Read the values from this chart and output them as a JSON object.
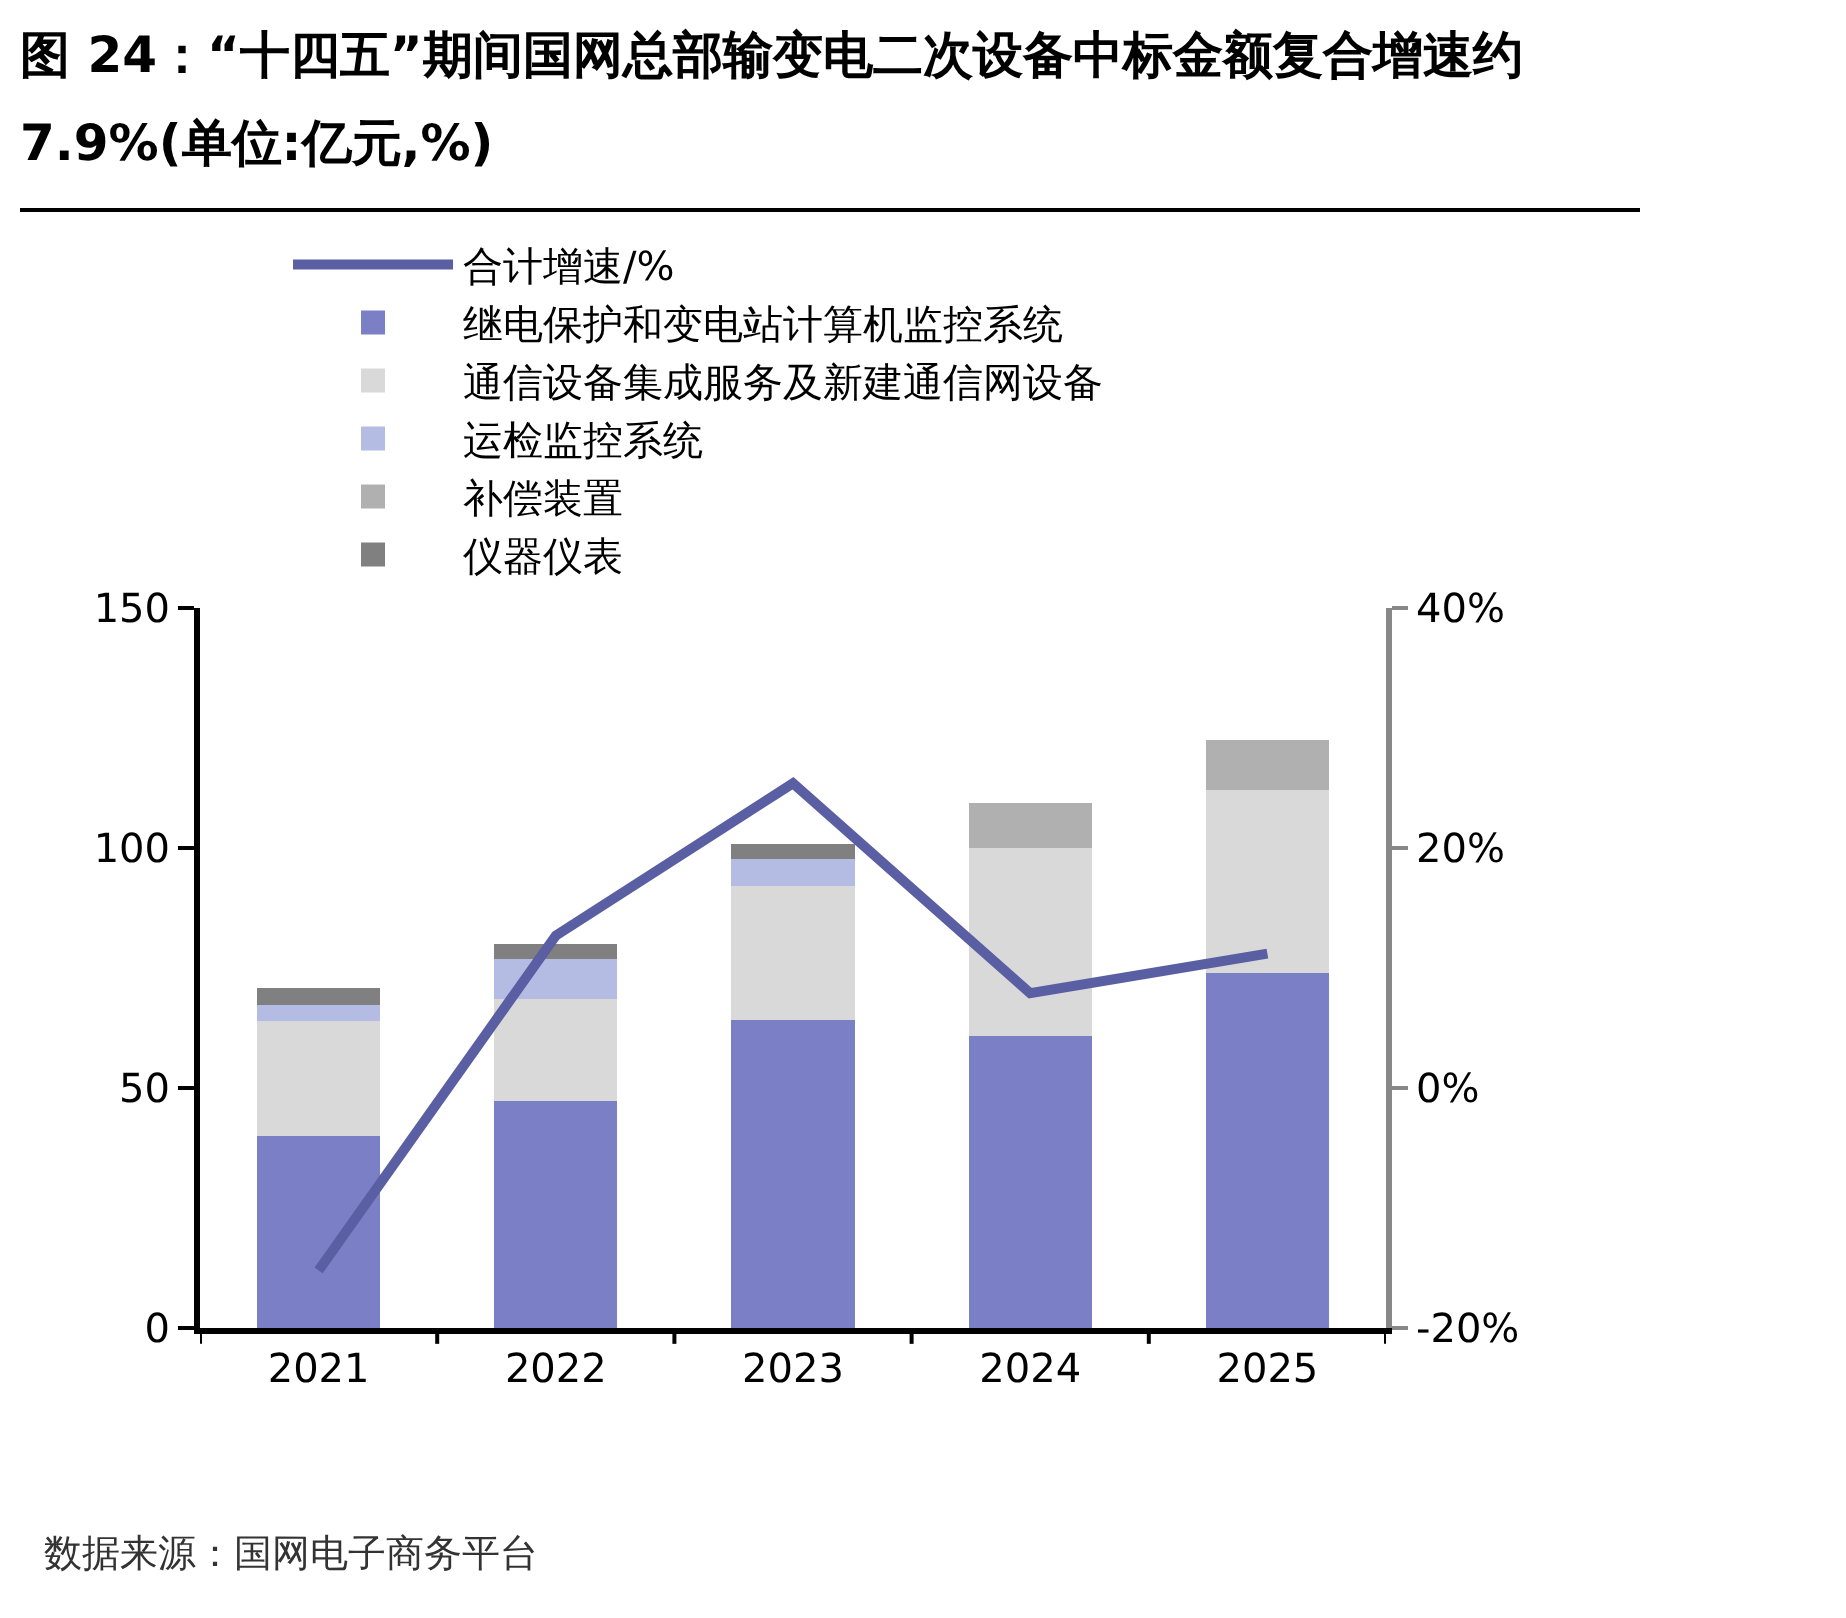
{
  "chart_data": {
    "type": "bar",
    "title": "图 24：“十四五”期间国网总部输变电二次设备中标金额复合增速约 7.9%(单位:亿元,%)",
    "categories": [
      "2021",
      "2022",
      "2023",
      "2024",
      "2025"
    ],
    "stacked": true,
    "series": [
      {
        "name": "继电保护和变电站计算机监控系统",
        "color": "#7b7fc6",
        "values": [
          40.0,
          47.3,
          64.2,
          60.8,
          73.9
        ]
      },
      {
        "name": "通信设备集成服务及新建通信网设备",
        "color": "#d9d9d9",
        "values": [
          24.0,
          21.2,
          27.9,
          39.3,
          38.1
        ]
      },
      {
        "name": "运检监控系统",
        "color": "#b4bce4",
        "values": [
          3.3,
          8.4,
          5.7,
          null,
          null
        ]
      },
      {
        "name": "补偿装置",
        "color": "#b0b0b0",
        "values": [
          null,
          null,
          null,
          9.2,
          10.4
        ]
      },
      {
        "name": "仪器仪表",
        "color": "#808080",
        "values": [
          3.5,
          3.2,
          3.0,
          null,
          null
        ]
      },
      {
        "name": "合计增速/%",
        "type": "line",
        "axis": "y2",
        "color": "#5a5fa3",
        "values": [
          -15.2,
          12.7,
          25.4,
          7.9,
          11.2
        ]
      }
    ],
    "ylim": [
      0,
      150
    ],
    "yticks": [
      0,
      50,
      100,
      150
    ],
    "y2lim": [
      -20,
      40
    ],
    "y2ticks": [
      {
        "value": -20,
        "label": "-20%"
      },
      {
        "value": 0,
        "label": "0%"
      },
      {
        "value": 20,
        "label": "20%"
      },
      {
        "value": 40,
        "label": "40%"
      }
    ],
    "grid": false,
    "legend": "top left",
    "marker": "none",
    "line_style": "solid",
    "annotations": [
      "数据来源：国网电子商务平台"
    ]
  }
}
